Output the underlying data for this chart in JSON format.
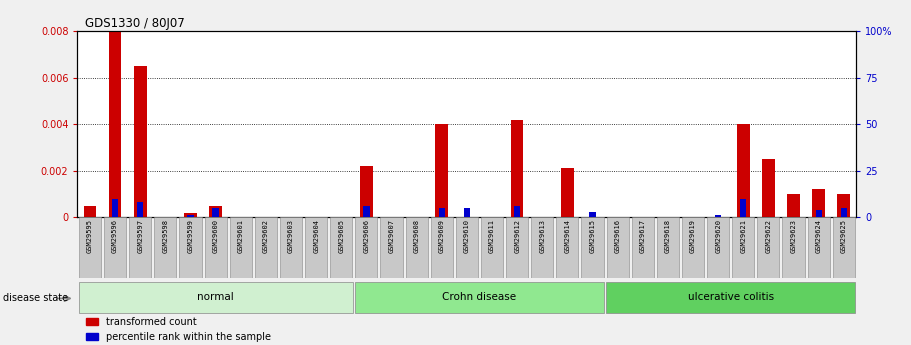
{
  "title": "GDS1330 / 80J07",
  "samples": [
    "GSM29595",
    "GSM29596",
    "GSM29597",
    "GSM29598",
    "GSM29599",
    "GSM29600",
    "GSM29601",
    "GSM29602",
    "GSM29603",
    "GSM29604",
    "GSM29605",
    "GSM29606",
    "GSM29607",
    "GSM29608",
    "GSM29609",
    "GSM29610",
    "GSM29611",
    "GSM29612",
    "GSM29613",
    "GSM29614",
    "GSM29615",
    "GSM29616",
    "GSM29617",
    "GSM29618",
    "GSM29619",
    "GSM29620",
    "GSM29621",
    "GSM29622",
    "GSM29623",
    "GSM29624",
    "GSM29625"
  ],
  "transformed_count": [
    0.0005,
    0.008,
    0.0065,
    0.0,
    0.0002,
    0.0005,
    0.0,
    0.0,
    0.0,
    0.0,
    0.0,
    0.0022,
    0.0,
    0.0,
    0.004,
    0.0,
    0.0,
    0.0042,
    0.0,
    0.0021,
    0.0,
    0.0,
    0.0,
    0.0,
    0.0,
    0.0,
    0.004,
    0.0025,
    0.001,
    0.0012,
    0.001
  ],
  "percentile_rank": [
    0.0,
    10.0,
    8.0,
    0.0,
    1.5,
    5.0,
    0.0,
    0.0,
    0.0,
    0.0,
    0.0,
    6.0,
    0.0,
    0.0,
    5.0,
    5.0,
    0.0,
    6.0,
    0.0,
    0.0,
    3.0,
    0.0,
    0.0,
    0.0,
    0.0,
    1.0,
    10.0,
    0.0,
    0.0,
    4.0,
    5.0
  ],
  "groups": [
    {
      "label": "normal",
      "start": 0,
      "end": 11,
      "color": "#d0f0d0"
    },
    {
      "label": "Crohn disease",
      "start": 11,
      "end": 21,
      "color": "#90e890"
    },
    {
      "label": "ulcerative colitis",
      "start": 21,
      "end": 31,
      "color": "#60d060"
    }
  ],
  "bar_color_red": "#cc0000",
  "bar_color_blue": "#0000cc",
  "ylim_left": [
    0.0,
    0.008
  ],
  "ylim_right": [
    0.0,
    100.0
  ],
  "yticks_left": [
    0.0,
    0.002,
    0.004,
    0.006,
    0.008
  ],
  "yticks_left_labels": [
    "0",
    "0.002",
    "0.004",
    "0.006",
    "0.008"
  ],
  "yticks_right": [
    0,
    25,
    50,
    75,
    100
  ],
  "yticks_right_labels": [
    "0",
    "25",
    "50",
    "75",
    "100%"
  ],
  "bg_color": "#f0f0f0",
  "plot_bg": "#ffffff",
  "disease_state_label": "disease state",
  "legend_labels": [
    "transformed count",
    "percentile rank within the sample"
  ],
  "sample_box_color": "#c8c8c8"
}
